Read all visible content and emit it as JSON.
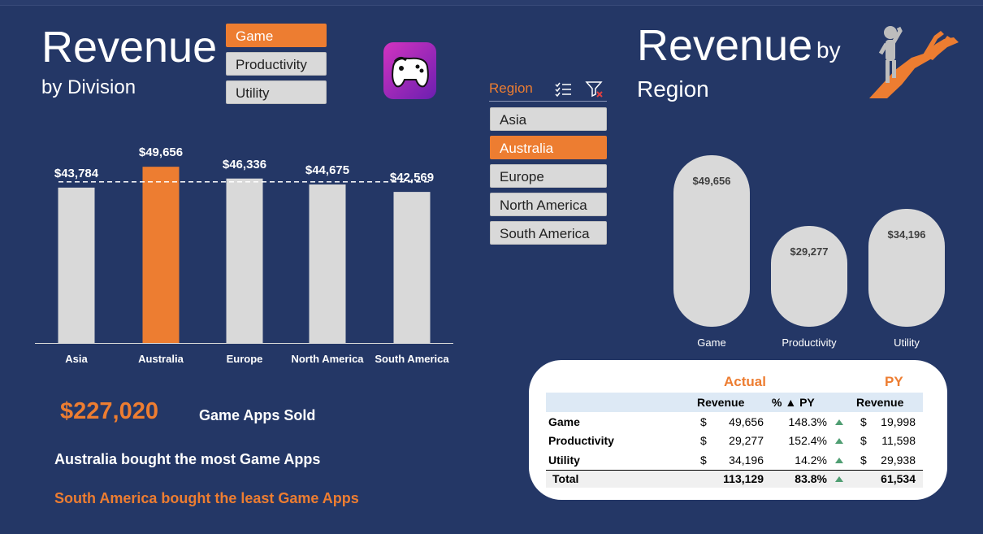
{
  "left_title": {
    "main": "Revenue",
    "sub": "by Division"
  },
  "division_slicer": {
    "items": [
      {
        "label": "Game",
        "selected": true
      },
      {
        "label": "Productivity",
        "selected": false
      },
      {
        "label": "Utility",
        "selected": false
      }
    ]
  },
  "region_slicer": {
    "title": "Region",
    "items": [
      {
        "label": "Asia",
        "selected": false
      },
      {
        "label": "Australia",
        "selected": true
      },
      {
        "label": "Europe",
        "selected": false
      },
      {
        "label": "North America",
        "selected": false
      },
      {
        "label": "South America",
        "selected": false
      }
    ]
  },
  "right_title": {
    "main": "Revenue",
    "by": "by",
    "sub": "Region"
  },
  "colors": {
    "background": "#243766",
    "accent": "#ed7d31",
    "bar": "#d9d9d9",
    "up_arrow": "#4f9e72"
  },
  "chart_data": [
    {
      "type": "bar",
      "categories": [
        "Asia",
        "Australia",
        "Europe",
        "North America",
        "South America"
      ],
      "values": [
        43784,
        49656,
        46336,
        44675,
        42569
      ],
      "value_labels": [
        "$43,784",
        "$49,656",
        "$46,336",
        "$44,675",
        "$42,569"
      ],
      "highlight": "Australia",
      "average_line": 45404,
      "ylim": [
        0,
        60000
      ]
    },
    {
      "type": "bar",
      "categories": [
        "Game",
        "Productivity",
        "Utility"
      ],
      "values": [
        49656,
        29277,
        34196
      ],
      "value_labels": [
        "$49,656",
        "$29,277",
        "$34,196"
      ],
      "ylim": [
        0,
        50000
      ]
    }
  ],
  "kpi": {
    "value": "$227,020",
    "label": "Game Apps Sold"
  },
  "insights": {
    "most": "Australia bought the most Game Apps",
    "least": "South America bought the least Game Apps"
  },
  "table": {
    "group_actual": "Actual",
    "group_py": "PY",
    "col_revenue": "Revenue",
    "col_pct": "% ▲ PY",
    "col_py_revenue": "Revenue",
    "currency": "$",
    "rows": [
      {
        "name": "Game",
        "actual": "49,656",
        "pct": "148.3%",
        "py": "19,998"
      },
      {
        "name": "Productivity",
        "actual": "29,277",
        "pct": "152.4%",
        "py": "11,598"
      },
      {
        "name": "Utility",
        "actual": "34,196",
        "pct": "14.2%",
        "py": "29,938"
      }
    ],
    "total": {
      "name": "Total",
      "actual": "113,129",
      "pct": "83.8%",
      "py": "61,534"
    }
  }
}
